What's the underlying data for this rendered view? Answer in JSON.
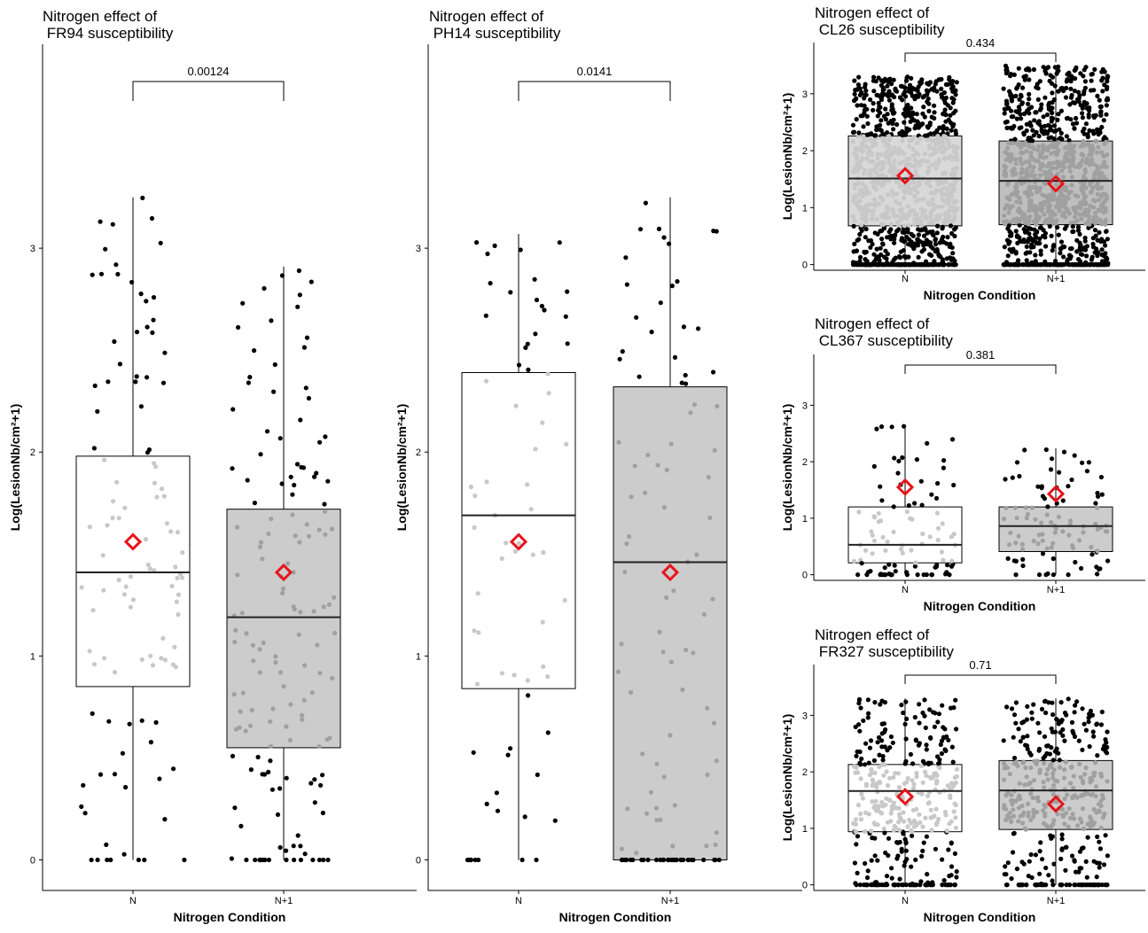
{
  "chart_data": [
    {
      "type": "box",
      "title": "Nitrogen effect of\n FR94 susceptibility",
      "xlabel": "Nitrogen Condition",
      "ylabel": "Log(LesionNb/cm²+1)",
      "categories": [
        "N",
        "N+1"
      ],
      "yticks": [
        "0",
        "1",
        "2",
        "3"
      ],
      "ylim": [
        -0.15,
        4.0
      ],
      "pvalue": "0.00124",
      "box_colors": [
        "#ffffff",
        "#cccccc"
      ],
      "mean_color": "#e8141b",
      "boxes": [
        {
          "q1": 0.85,
          "median": 1.41,
          "q3": 1.98,
          "whisker_low": 0.0,
          "whisker_high": 3.25,
          "mean": 1.56
        },
        {
          "q1": 0.55,
          "median": 1.19,
          "q3": 1.72,
          "whisker_low": 0.0,
          "whisker_high": 2.91,
          "mean": 1.41
        }
      ]
    },
    {
      "type": "box",
      "title": "Nitrogen effect of\n PH14 susceptibility",
      "xlabel": "Nitrogen Condition",
      "ylabel": "Log(LesionNb/cm²+1)",
      "categories": [
        "N",
        "N+1"
      ],
      "yticks": [
        "0",
        "1",
        "2",
        "3"
      ],
      "ylim": [
        -0.15,
        4.0
      ],
      "pvalue": "0.0141",
      "box_colors": [
        "#ffffff",
        "#cccccc"
      ],
      "mean_color": "#e8141b",
      "boxes": [
        {
          "q1": 0.84,
          "median": 1.69,
          "q3": 2.39,
          "whisker_low": 0.0,
          "whisker_high": 3.07,
          "mean": 1.56
        },
        {
          "q1": 0.0,
          "median": 1.46,
          "q3": 2.32,
          "whisker_low": 0.0,
          "whisker_high": 3.25,
          "mean": 1.41
        }
      ]
    },
    {
      "type": "box",
      "title": "Nitrogen effect of\n CL26 susceptibility",
      "xlabel": "Nitrogen Condition",
      "ylabel": "Log(LesionNb/cm²+1)",
      "categories": [
        "N",
        "N+1"
      ],
      "yticks": [
        "0",
        "1",
        "2",
        "3"
      ],
      "ylim": [
        -0.1,
        3.9
      ],
      "pvalue": "0.434",
      "box_colors": [
        "#d9d9d9",
        "#bfbfbf"
      ],
      "mean_color": "#e8141b",
      "boxes": [
        {
          "q1": 0.68,
          "median": 1.51,
          "q3": 2.26,
          "whisker_low": 0.0,
          "whisker_high": 3.3,
          "mean": 1.56
        },
        {
          "q1": 0.7,
          "median": 1.47,
          "q3": 2.17,
          "whisker_low": 0.0,
          "whisker_high": 3.5,
          "mean": 1.42
        }
      ]
    },
    {
      "type": "box",
      "title": "Nitrogen effect of\n CL367 susceptibility",
      "xlabel": "Nitrogen Condition",
      "ylabel": "Log(LesionNb/cm²+1)",
      "categories": [
        "N",
        "N+1"
      ],
      "yticks": [
        "0",
        "1",
        "2",
        "3"
      ],
      "ylim": [
        -0.1,
        3.9
      ],
      "pvalue": "0.381",
      "box_colors": [
        "#ffffff",
        "#cccccc"
      ],
      "mean_color": "#e8141b",
      "boxes": [
        {
          "q1": 0.21,
          "median": 0.53,
          "q3": 1.2,
          "whisker_low": 0.0,
          "whisker_high": 2.65,
          "mean": 1.55
        },
        {
          "q1": 0.41,
          "median": 0.86,
          "q3": 1.2,
          "whisker_low": 0.0,
          "whisker_high": 2.24,
          "mean": 1.43
        }
      ]
    },
    {
      "type": "box",
      "title": "Nitrogen effect of\n FR327 susceptibility",
      "xlabel": "Nitrogen Condition",
      "ylabel": "Log(LesionNb/cm²+1)",
      "categories": [
        "N",
        "N+1"
      ],
      "yticks": [
        "0",
        "1",
        "2",
        "3"
      ],
      "ylim": [
        -0.1,
        3.9
      ],
      "pvalue": "0.71",
      "box_colors": [
        "#ffffff",
        "#cccccc"
      ],
      "mean_color": "#e8141b",
      "boxes": [
        {
          "q1": 0.94,
          "median": 1.66,
          "q3": 2.13,
          "whisker_low": 0.0,
          "whisker_high": 3.3,
          "mean": 1.56
        },
        {
          "q1": 0.98,
          "median": 1.67,
          "q3": 2.2,
          "whisker_low": 0.0,
          "whisker_high": 3.3,
          "mean": 1.43
        }
      ]
    }
  ]
}
